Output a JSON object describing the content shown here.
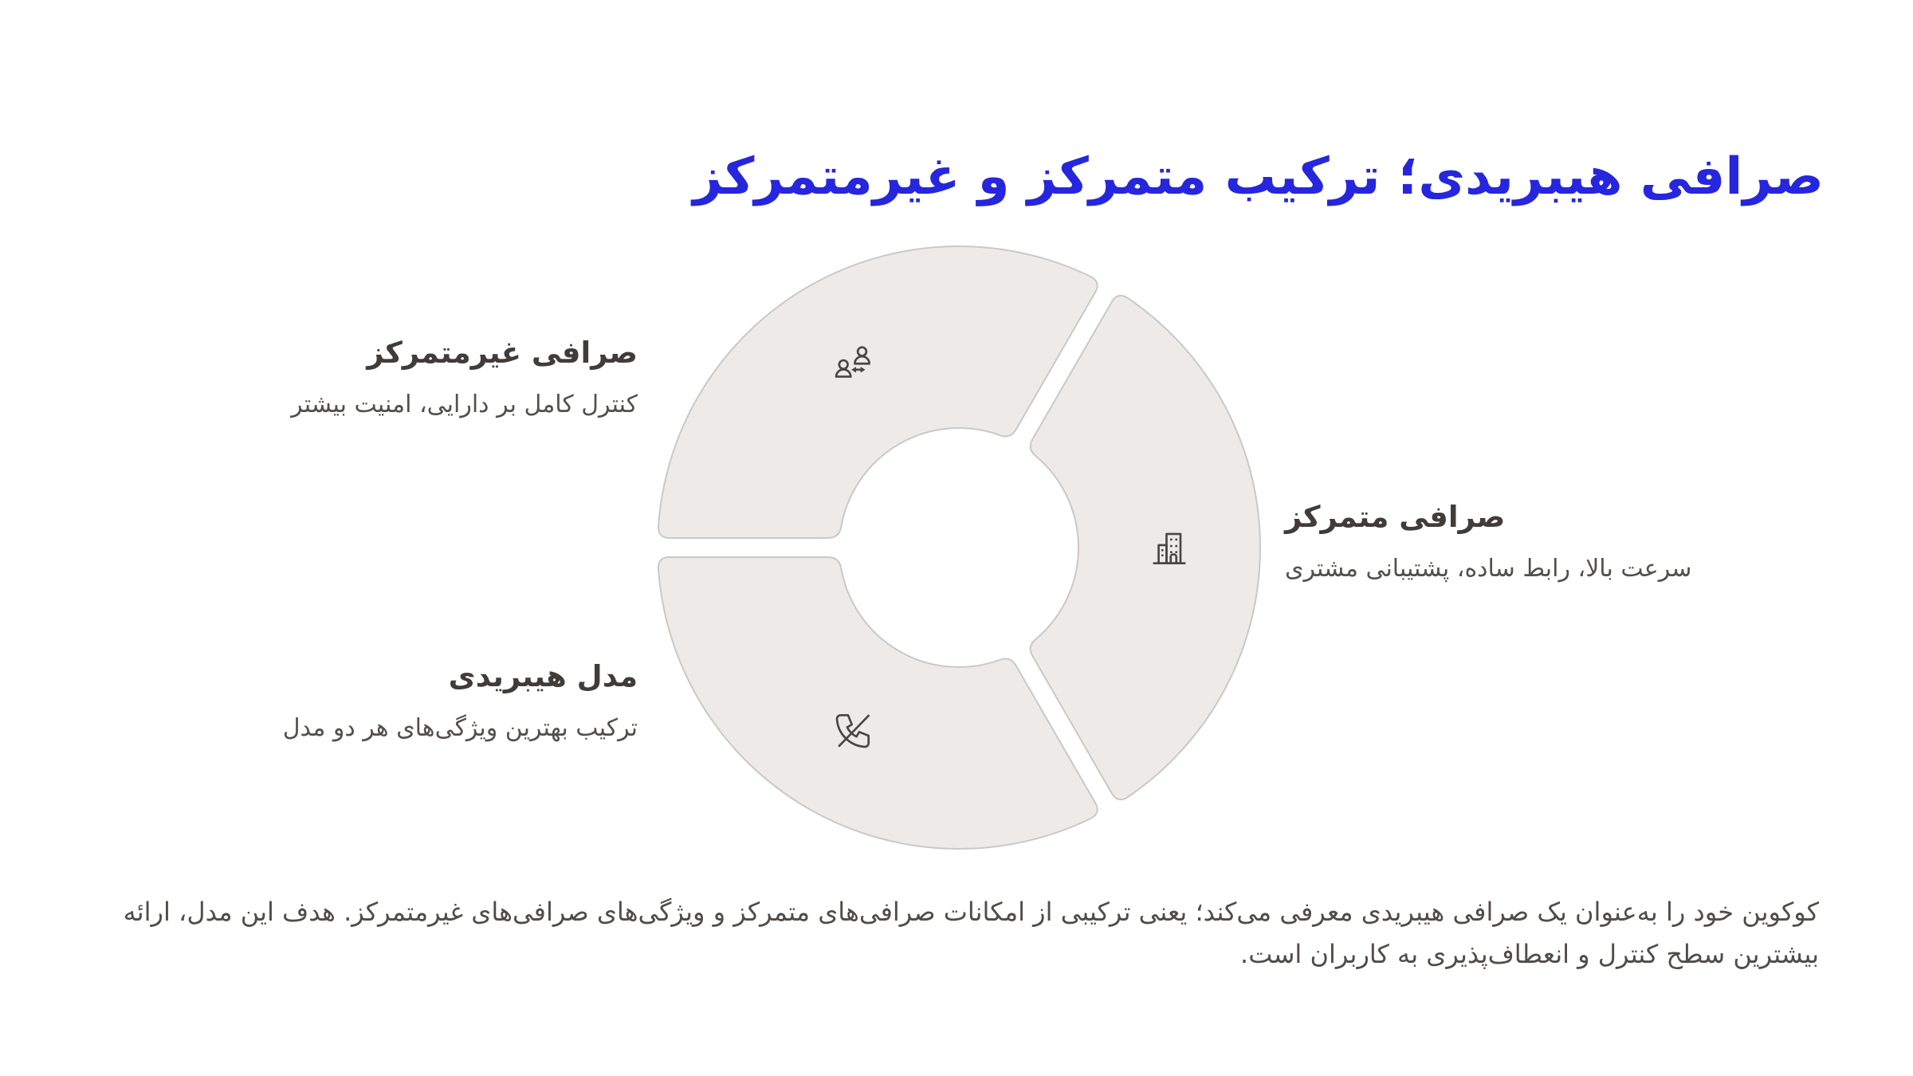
{
  "title": "صرافی هیبریدی؛ ترکیب متمرکز و غیرمتمرکز",
  "diagram": {
    "type": "donut-infographic",
    "segments": [
      {
        "id": "decentralized",
        "label": "صرافی غیرمتمرکز",
        "description": "کنترل کامل بر دارایی، امنیت بیشتر",
        "icon": "users-exchange-icon",
        "position": "top-left"
      },
      {
        "id": "centralized",
        "label": "صرافی متمرکز",
        "description": "سرعت بالا، رابط ساده، پشتیبانی مشتری",
        "icon": "building-icon",
        "position": "right"
      },
      {
        "id": "hybrid",
        "label": "مدل هیبریدی",
        "description": "ترکیب بهترین ویژگی‌های هر دو مدل",
        "icon": "phone-off-icon",
        "position": "bottom-left"
      }
    ]
  },
  "footer_paragraph": "کوکوین خود را به‌عنوان یک صرافی هیبریدی معرفی می‌کند؛ یعنی ترکیبی از امکانات صرافی‌های متمرکز و ویژگی‌های صرافی‌های غیرمتمرکز. هدف این مدل، ارائه بیشترین سطح کنترل و انعطاف‌پذیری به کاربران است.",
  "colors": {
    "title_blue": "#2626DE",
    "segment_fill": "#EDEAE8",
    "segment_border": "#CBC8C5",
    "label_dark": "#413C39",
    "label_muted": "#554F4C",
    "paragraph_gray": "#524C49",
    "icon_stroke": "#4B4643"
  }
}
